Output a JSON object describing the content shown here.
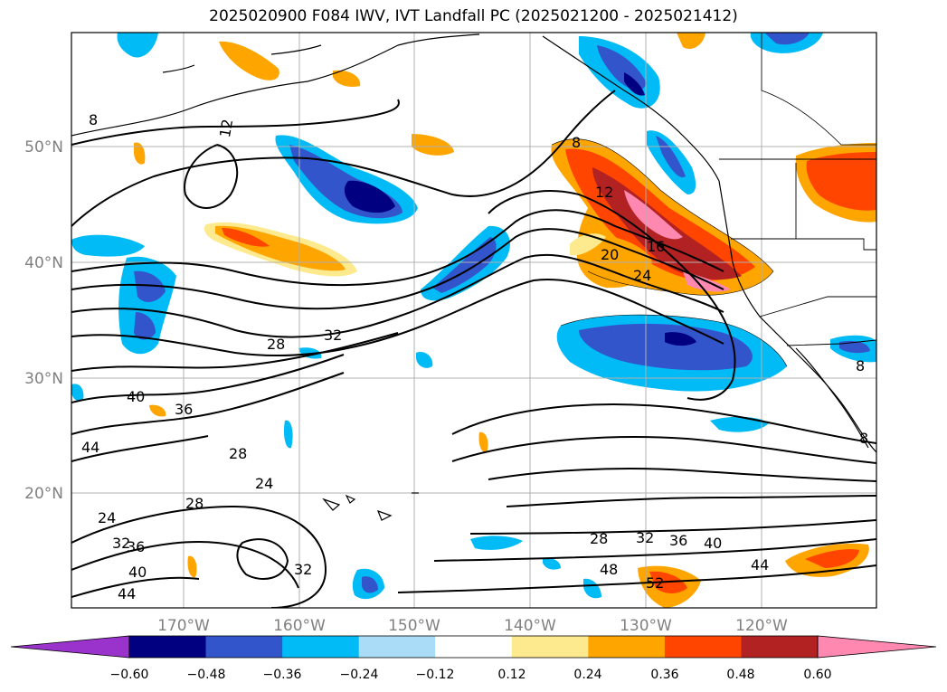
{
  "title": "2025020900 F084 IWV, IVT Landfall PC (2025021200 - 2025021412)",
  "lat_labels": [
    "50°N",
    "40°N",
    "30°N",
    "20°N"
  ],
  "lon_labels": [
    "170°W",
    "160°W",
    "150°W",
    "140°W",
    "130°W",
    "120°W"
  ],
  "colorbar": {
    "colors": [
      "#9933cc",
      "#000080",
      "#3355cc",
      "#00bbf5",
      "#aadcf8",
      "#ffffff",
      "#fdea8f",
      "#ffa500",
      "#ff4500",
      "#b22222",
      "#ff88b0"
    ],
    "tick_labels": [
      "−0.60",
      "−0.48",
      "−0.36",
      "−0.24",
      "−0.12",
      "0.12",
      "0.24",
      "0.36",
      "0.48",
      "0.60"
    ]
  },
  "contour_labels": [
    {
      "text": "8"
    },
    {
      "text": "12"
    },
    {
      "text": "8"
    },
    {
      "text": "12"
    },
    {
      "text": "16"
    },
    {
      "text": "20"
    },
    {
      "text": "24"
    },
    {
      "text": "28"
    },
    {
      "text": "32"
    },
    {
      "text": "40"
    },
    {
      "text": "36"
    },
    {
      "text": "44"
    },
    {
      "text": "28"
    },
    {
      "text": "24"
    },
    {
      "text": "28"
    },
    {
      "text": "24"
    },
    {
      "text": "32"
    },
    {
      "text": "36"
    },
    {
      "text": "40"
    },
    {
      "text": "44"
    },
    {
      "text": "32"
    },
    {
      "text": "28"
    },
    {
      "text": "32"
    },
    {
      "text": "36"
    },
    {
      "text": "40"
    },
    {
      "text": "44"
    },
    {
      "text": "48"
    },
    {
      "text": "52"
    },
    {
      "text": "8"
    },
    {
      "text": "8"
    }
  ]
}
